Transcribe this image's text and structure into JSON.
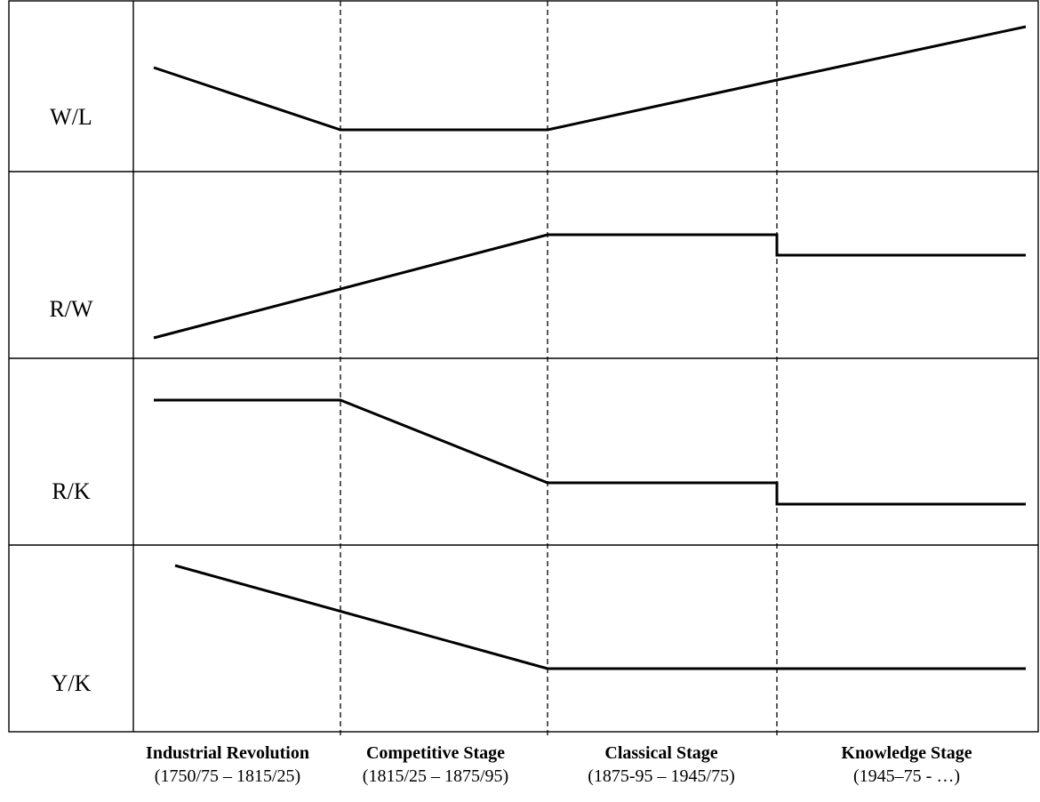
{
  "rows": [
    {
      "label": "W/L"
    },
    {
      "label": "R/W"
    },
    {
      "label": "R/K"
    },
    {
      "label": "Y/K"
    }
  ],
  "stages": [
    {
      "name": "Industrial Revolution",
      "period": "(1750/75 – 1815/25)"
    },
    {
      "name": "Competitive Stage",
      "period": "(1815/25 – 1875/95)"
    },
    {
      "name": "Classical Stage",
      "period": "(1875-95 – 1945/75)"
    },
    {
      "name": "Knowledge Stage",
      "period": "(1945–75 - …)"
    }
  ]
}
